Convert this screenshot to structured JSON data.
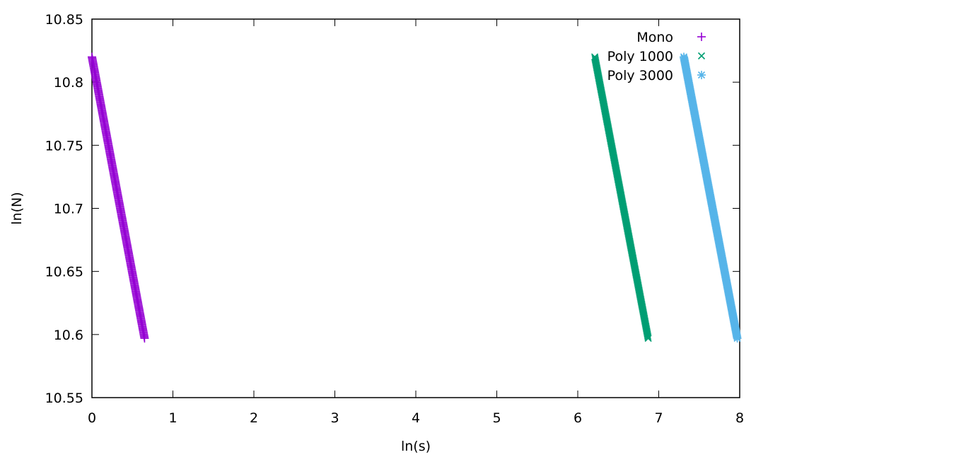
{
  "chart_data": {
    "type": "scatter",
    "title": "",
    "xlabel": "ln(s)",
    "ylabel": "ln(N)",
    "xlim": [
      0,
      8
    ],
    "ylim": [
      10.55,
      10.85
    ],
    "x_ticks": [
      "0",
      "1",
      "2",
      "3",
      "4",
      "5",
      "6",
      "7",
      "8"
    ],
    "y_ticks": [
      "10.55",
      "10.6",
      "10.65",
      "10.7",
      "10.75",
      "10.8",
      "10.85"
    ],
    "grid": false,
    "legend_position": "top-right",
    "series": [
      {
        "name": "Mono",
        "marker": "plus",
        "color": "#9400d3",
        "x_range": [
          0.0,
          0.65
        ],
        "y_range": [
          10.82,
          10.597
        ]
      },
      {
        "name": "Poly 1000",
        "marker": "cross",
        "color": "#009e73",
        "x_range": [
          6.21,
          6.87
        ],
        "y_range": [
          10.82,
          10.597
        ]
      },
      {
        "name": "Poly 3000",
        "marker": "asterisk",
        "color": "#56b4e9",
        "x_range": [
          7.31,
          7.97
        ],
        "y_range": [
          10.82,
          10.597
        ]
      }
    ]
  }
}
